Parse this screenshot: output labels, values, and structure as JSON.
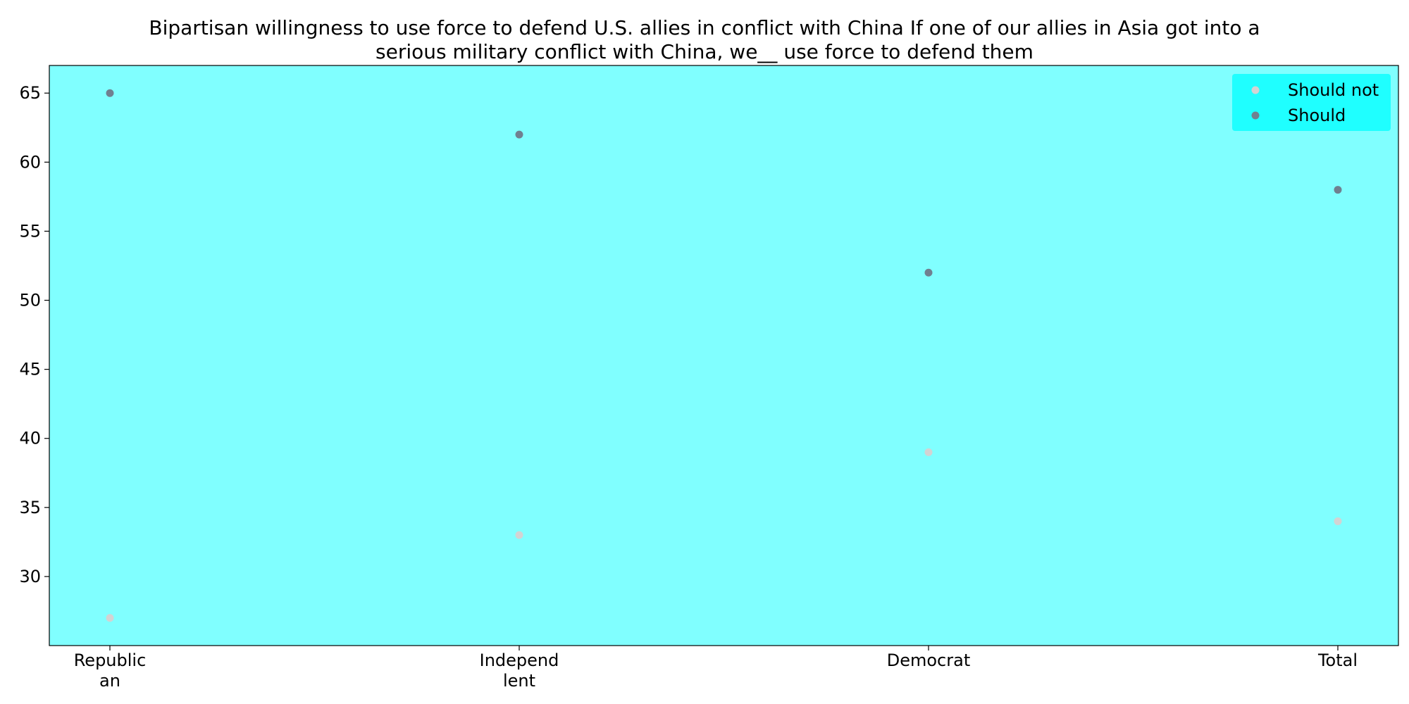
{
  "chart_data": {
    "type": "scatter",
    "title": "Bipartisan willingness to use force to defend U.S. allies in conflict with China If one of our allies in Asia got into a serious military conflict with China, we__ use force to defend them",
    "title_lines": [
      "Bipartisan willingness to use force to defend U.S. allies in conflict with China If one of our allies in Asia got into a",
      "serious military conflict with China, we__ use force to defend them"
    ],
    "categories": [
      "Republican",
      "Independlent",
      "Democrat",
      "Total"
    ],
    "category_tick_lines": [
      [
        "Republic",
        "an"
      ],
      [
        "Independ",
        "lent"
      ],
      [
        "Democrat"
      ],
      [
        "Total"
      ]
    ],
    "series": [
      {
        "name": "Should not",
        "values": [
          27,
          33,
          39,
          34
        ],
        "color": "#d3d3d3"
      },
      {
        "name": "Should",
        "values": [
          65,
          62,
          52,
          58
        ],
        "color": "#708090"
      }
    ],
    "xlabel": "",
    "ylabel": "",
    "ylim": [
      25,
      67
    ],
    "yticks": [
      30,
      35,
      40,
      45,
      50,
      55,
      60,
      65
    ],
    "grid": false,
    "legend_position": "top-right",
    "plot_background": "#80ffff",
    "legend_background": "#1fffff"
  }
}
